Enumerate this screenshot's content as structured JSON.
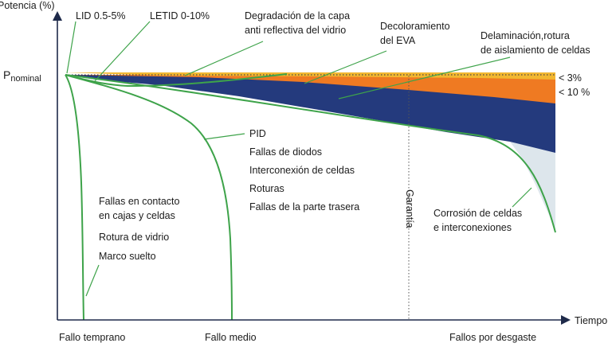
{
  "axes": {
    "y_label": "Potencia (%)",
    "x_label": "Tiempo",
    "p_nominal_main": "P",
    "p_nominal_sub": "nominal"
  },
  "top_labels": {
    "lid": "LID 0.5-5%",
    "letid": "LETID 0-10%",
    "degradation_line1": "Degradación de la capa",
    "degradation_line2": "anti reflectiva del vidrio",
    "eva_line1": "Decoloramiento",
    "eva_line2": "del EVA",
    "delam_line1": "Delaminación,rotura",
    "delam_line2": "de aislamiento de celdas"
  },
  "right_labels": {
    "three_pct": "< 3%",
    "ten_pct": "< 10 %"
  },
  "mid_causes": [
    "PID",
    "Fallas de diodos",
    "Interconexión de celdas",
    "Roturas",
    "Fallas de la parte trasera"
  ],
  "early_causes": {
    "line1": "Fallas en contacto",
    "line2": "en cajas y celdas",
    "line3": "Rotura de vidrio",
    "line4": "Marco suelto"
  },
  "warranty": "Garantía",
  "corrosion_line1": "Corrosión de celdas",
  "corrosion_line2": "e interconexiones",
  "bottom_labels": {
    "early": "Fallo temprano",
    "medium": "Fallo medio",
    "wearout": "Fallos por desgaste"
  },
  "colors": {
    "axis": "#1e2a4a",
    "green": "#3ea34a",
    "yellow": "#f2b731",
    "orange": "#ef7a22",
    "navy": "#243a7d",
    "light_blue": "#dde6ec"
  }
}
